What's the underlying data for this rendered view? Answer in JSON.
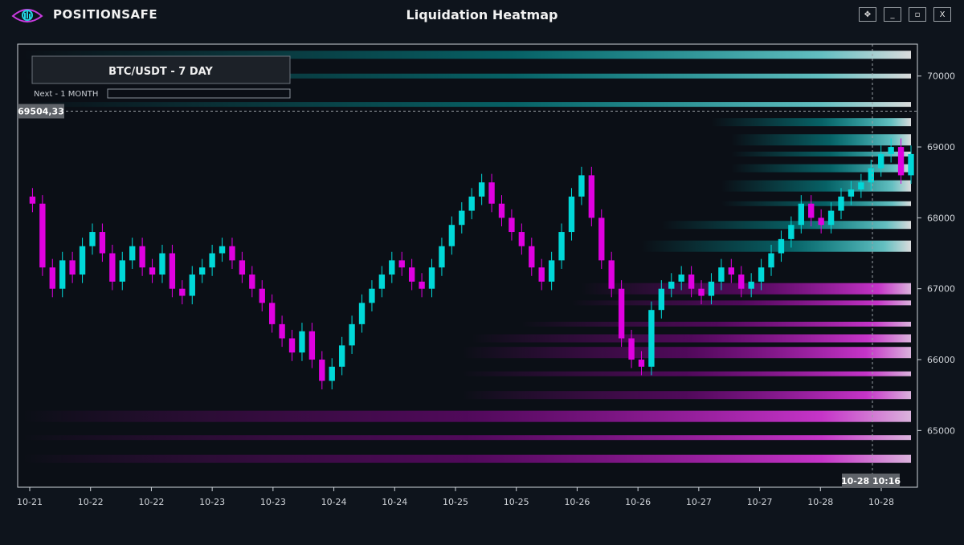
{
  "window": {
    "brand": "POSITIONSAFE",
    "title": "Liquidation Heatmap",
    "buttons": [
      {
        "name": "move-button",
        "label": "✥"
      },
      {
        "name": "minimize-button",
        "label": "_"
      },
      {
        "name": "maximize-button",
        "label": "▫"
      },
      {
        "name": "close-button",
        "label": "X"
      }
    ],
    "colors": {
      "background": "#0e141c",
      "plot_bg": "#0b0f16",
      "long_liq": "#00e5e5",
      "short_liq": "#e600e6",
      "candle_up": "#00d8d8",
      "candle_down": "#e000e0"
    }
  },
  "controls": {
    "pair_button": "BTC/USDT - 7 DAY",
    "next_label": "Next - 1 MONTH"
  },
  "chart_data": {
    "type": "heatmap",
    "title": "",
    "xlabel": "",
    "ylabel": "",
    "x_ticks": [
      "10-21",
      "10-22",
      "10-22",
      "10-23",
      "10-23",
      "10-24",
      "10-24",
      "10-25",
      "10-25",
      "10-26",
      "10-26",
      "10-27",
      "10-27",
      "10-28",
      "10-28"
    ],
    "y_ticks": [
      65000,
      66000,
      67000,
      68000,
      69000,
      70000
    ],
    "ylim": [
      64200,
      70450
    ],
    "crosshair": {
      "price_label": "69504,33",
      "price": 69504.33,
      "time_label": "10-28 10:16"
    },
    "price_series": [
      68300,
      68200,
      67300,
      67000,
      67400,
      67200,
      67600,
      67800,
      67500,
      67100,
      67400,
      67600,
      67300,
      67200,
      67500,
      67000,
      66900,
      67200,
      67300,
      67500,
      67600,
      67400,
      67200,
      67000,
      66800,
      66500,
      66300,
      66100,
      66400,
      66000,
      65700,
      65900,
      66200,
      66500,
      66800,
      67000,
      67200,
      67400,
      67300,
      67100,
      67000,
      67300,
      67600,
      67900,
      68100,
      68300,
      68500,
      68200,
      68000,
      67800,
      67600,
      67300,
      67100,
      67400,
      67800,
      68300,
      68600,
      68000,
      67400,
      67000,
      66300,
      66000,
      65900,
      66700,
      67000,
      67100,
      67200,
      67000,
      66900,
      67100,
      67300,
      67200,
      67000,
      67100,
      67300,
      67500,
      67700,
      67900,
      68200,
      68000,
      67900,
      68100,
      68300,
      68400,
      68500,
      68700,
      68900,
      69000,
      68600,
      68900
    ],
    "series": [
      {
        "name": "",
        "color": "#00e5e5",
        "bands": [
          69600,
          69350,
          69100,
          68900,
          68700,
          68450,
          68200,
          67900,
          67600,
          70000,
          70300
        ]
      },
      {
        "name": "",
        "color": "#e600e6",
        "bands": [
          66500,
          66300,
          66100,
          65800,
          65500,
          65200,
          64900,
          64600,
          67000,
          66800
        ]
      }
    ],
    "grid": false,
    "legend": "none"
  }
}
